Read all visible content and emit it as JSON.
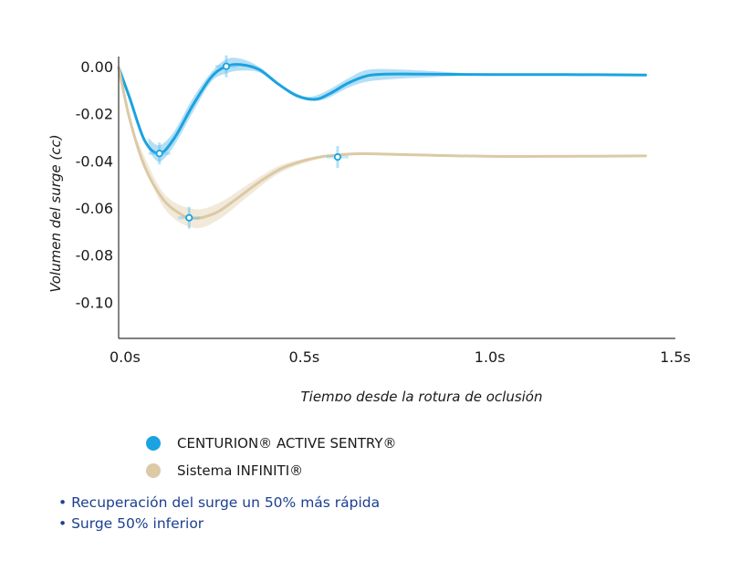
{
  "chart_data": {
    "type": "line",
    "xlabel": "Tiempo desde la rotura de oclusión",
    "ylabel": "Volumen del surge (cc)",
    "xlim": [
      0,
      1.5
    ],
    "ylim": [
      -0.115,
      0.0
    ],
    "x_ticks": [
      {
        "value": 0.0,
        "label": "0.0s"
      },
      {
        "value": 0.5,
        "label": "0.5s"
      },
      {
        "value": 1.0,
        "label": "1.0s"
      },
      {
        "value": 1.5,
        "label": "1.5s"
      }
    ],
    "y_ticks": [
      {
        "value": 0.0,
        "label": "0.00"
      },
      {
        "value": -0.02,
        "label": "-0.02"
      },
      {
        "value": -0.04,
        "label": "-0.04"
      },
      {
        "value": -0.06,
        "label": "-0.06"
      },
      {
        "value": -0.08,
        "label": "-0.08"
      },
      {
        "value": -0.1,
        "label": "-0.10"
      }
    ],
    "grid": false,
    "series": [
      {
        "name": "CENTURION® ACTIVE SENTRY®",
        "color": "#1aa3e0",
        "band_color": "#a8d9f2",
        "x": [
          0.0,
          0.03,
          0.07,
          0.11,
          0.15,
          0.2,
          0.25,
          0.29,
          0.33,
          0.38,
          0.43,
          0.48,
          0.53,
          0.57,
          0.62,
          0.67,
          0.72,
          0.8,
          0.9,
          1.0,
          1.2,
          1.42
        ],
        "y": [
          0.0,
          -0.013,
          -0.031,
          -0.0365,
          -0.03,
          -0.016,
          -0.004,
          0.0005,
          0.0012,
          -0.001,
          -0.007,
          -0.012,
          -0.0135,
          -0.011,
          -0.0065,
          -0.0035,
          -0.0028,
          -0.0028,
          -0.0029,
          -0.003,
          -0.003,
          -0.0032
        ],
        "band": [
          {
            "x": 0.08,
            "half": 0.0025
          },
          {
            "x": 0.11,
            "half": 0.0035
          },
          {
            "x": 0.15,
            "half": 0.003
          },
          {
            "x": 0.2,
            "half": 0.003
          },
          {
            "x": 0.25,
            "half": 0.002
          },
          {
            "x": 0.29,
            "half": 0.003
          },
          {
            "x": 0.33,
            "half": 0.0025
          },
          {
            "x": 0.38,
            "half": 0.0012
          },
          {
            "x": 0.43,
            "half": 0.0005
          },
          {
            "x": 0.5,
            "half": 0.0004
          },
          {
            "x": 0.55,
            "half": 0.0015
          },
          {
            "x": 0.62,
            "half": 0.002
          },
          {
            "x": 0.67,
            "half": 0.0025
          },
          {
            "x": 0.75,
            "half": 0.002
          },
          {
            "x": 0.82,
            "half": 0.0015
          },
          {
            "x": 0.9,
            "half": 0.0008
          },
          {
            "x": 0.96,
            "half": 0.0002
          }
        ],
        "markers": [
          {
            "x": 0.11,
            "y": -0.0365
          },
          {
            "x": 0.29,
            "y": 0.0005
          }
        ]
      },
      {
        "name": "Sistema INFINITI®",
        "color": "#dcc9a5",
        "band_color": "#efe6d4",
        "x": [
          0.0,
          0.03,
          0.07,
          0.12,
          0.17,
          0.2,
          0.23,
          0.27,
          0.32,
          0.38,
          0.44,
          0.5,
          0.55,
          0.6,
          0.66,
          0.8,
          1.0,
          1.2,
          1.42
        ],
        "y": [
          0.0,
          -0.022,
          -0.042,
          -0.056,
          -0.0625,
          -0.064,
          -0.0635,
          -0.061,
          -0.0555,
          -0.0485,
          -0.0428,
          -0.0395,
          -0.0378,
          -0.037,
          -0.0366,
          -0.0371,
          -0.0377,
          -0.0377,
          -0.0375
        ],
        "band": [
          {
            "x": 0.05,
            "half": 0.001
          },
          {
            "x": 0.12,
            "half": 0.003
          },
          {
            "x": 0.2,
            "half": 0.004
          },
          {
            "x": 0.27,
            "half": 0.0035
          },
          {
            "x": 0.35,
            "half": 0.0025
          },
          {
            "x": 0.44,
            "half": 0.0015
          },
          {
            "x": 0.55,
            "half": 0.0005
          },
          {
            "x": 0.6,
            "half": 0.0002
          }
        ],
        "markers": [
          {
            "x": 0.19,
            "y": -0.0638
          },
          {
            "x": 0.59,
            "y": -0.038
          }
        ]
      }
    ]
  },
  "legend": {
    "items": [
      {
        "label": "CENTURION® ACTIVE SENTRY®",
        "color": "#1aa3e0"
      },
      {
        "label": "Sistema INFINITI®",
        "color": "#dcc9a5"
      }
    ]
  },
  "notes": [
    "• Recuperación del surge un 50% más rápida",
    "• Surge 50% inferior"
  ]
}
